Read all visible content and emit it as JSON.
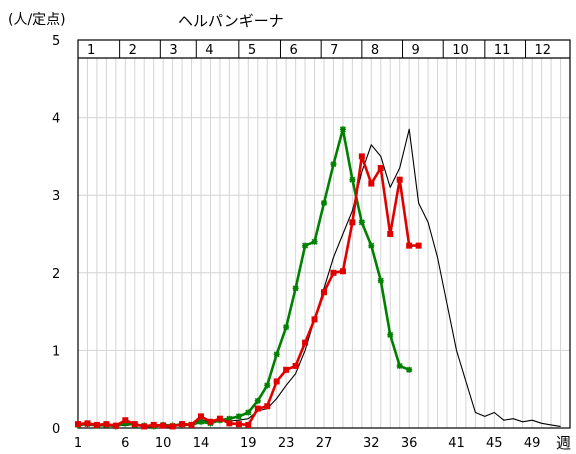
{
  "chart_data": {
    "type": "line",
    "title": "ヘルパンギーナ",
    "ylabel": "(人/定点)",
    "xlabel": "週",
    "ylim": [
      0,
      5
    ],
    "xlim": [
      1,
      53
    ],
    "grid": true,
    "yticks": [
      "0",
      "1",
      "2",
      "3",
      "4",
      "5"
    ],
    "xticks": [
      {
        "x": 1,
        "label": "1"
      },
      {
        "x": 6,
        "label": "6"
      },
      {
        "x": 10,
        "label": "10"
      },
      {
        "x": 14,
        "label": "14"
      },
      {
        "x": 19,
        "label": "19"
      },
      {
        "x": 23,
        "label": "23"
      },
      {
        "x": 27,
        "label": "27"
      },
      {
        "x": 32,
        "label": "32"
      },
      {
        "x": 36,
        "label": "36"
      },
      {
        "x": 41,
        "label": "41"
      },
      {
        "x": 45,
        "label": "45"
      },
      {
        "x": 49,
        "label": "49"
      }
    ],
    "months": [
      {
        "label": "1",
        "start": 1,
        "end": 5.4
      },
      {
        "label": "2",
        "start": 5.4,
        "end": 9.7
      },
      {
        "label": "3",
        "start": 9.7,
        "end": 13.5
      },
      {
        "label": "4",
        "start": 13.5,
        "end": 18
      },
      {
        "label": "5",
        "start": 18,
        "end": 22.4
      },
      {
        "label": "6",
        "start": 22.4,
        "end": 26.7
      },
      {
        "label": "7",
        "start": 26.7,
        "end": 31
      },
      {
        "label": "8",
        "start": 31,
        "end": 35.3
      },
      {
        "label": "9",
        "start": 35.3,
        "end": 39.6
      },
      {
        "label": "10",
        "start": 39.6,
        "end": 44
      },
      {
        "label": "11",
        "start": 44,
        "end": 48.3
      },
      {
        "label": "12",
        "start": 48.3,
        "end": 53
      }
    ],
    "series": [
      {
        "color": "#000000",
        "marker": "none",
        "x": [
          1,
          2,
          3,
          4,
          5,
          6,
          7,
          8,
          9,
          10,
          11,
          12,
          13,
          14,
          15,
          16,
          17,
          18,
          19,
          20,
          21,
          22,
          23,
          24,
          25,
          26,
          27,
          28,
          29,
          30,
          31,
          32,
          33,
          34,
          35,
          36,
          37,
          38,
          39,
          40,
          41,
          42,
          43,
          44,
          45,
          46,
          47,
          48,
          49,
          50,
          51,
          52
        ],
        "values": [
          0.05,
          0.04,
          0.05,
          0.02,
          0.04,
          0.03,
          0.05,
          0.03,
          0.02,
          0.03,
          0.04,
          0.02,
          0.05,
          0.1,
          0.08,
          0.12,
          0.09,
          0.1,
          0.12,
          0.22,
          0.25,
          0.38,
          0.55,
          0.7,
          1.0,
          1.4,
          1.8,
          2.2,
          2.5,
          2.8,
          3.3,
          3.65,
          3.5,
          3.1,
          3.35,
          3.85,
          2.9,
          2.65,
          2.2,
          1.6,
          1.0,
          0.6,
          0.2,
          0.15,
          0.2,
          0.1,
          0.12,
          0.08,
          0.1,
          0.06,
          0.04,
          0.02
        ]
      },
      {
        "color": "#008000",
        "marker": "star",
        "x": [
          1,
          2,
          3,
          4,
          5,
          6,
          7,
          8,
          9,
          10,
          11,
          12,
          13,
          14,
          15,
          16,
          17,
          18,
          19,
          20,
          21,
          22,
          23,
          24,
          25,
          26,
          27,
          28,
          29,
          30,
          31,
          32,
          33,
          34,
          35,
          36
        ],
        "values": [
          0.04,
          0.05,
          0.03,
          0.04,
          0.02,
          0.06,
          0.04,
          0.03,
          0.02,
          0.04,
          0.03,
          0.05,
          0.04,
          0.08,
          0.06,
          0.1,
          0.12,
          0.15,
          0.2,
          0.35,
          0.55,
          0.95,
          1.3,
          1.8,
          2.35,
          2.4,
          2.9,
          3.4,
          3.85,
          3.2,
          2.65,
          2.35,
          1.9,
          1.2,
          0.8,
          0.75
        ]
      },
      {
        "color": "#e00000",
        "marker": "square",
        "x": [
          1,
          2,
          3,
          4,
          5,
          6,
          7,
          8,
          9,
          10,
          11,
          12,
          13,
          14,
          15,
          16,
          17,
          18,
          19,
          20,
          21,
          22,
          23,
          24,
          25,
          26,
          27,
          28,
          29,
          30,
          31,
          32,
          33,
          34,
          35,
          36,
          37
        ],
        "values": [
          0.05,
          0.06,
          0.04,
          0.05,
          0.03,
          0.1,
          0.05,
          0.02,
          0.04,
          0.03,
          0.02,
          0.05,
          0.04,
          0.15,
          0.08,
          0.12,
          0.06,
          0.05,
          0.04,
          0.25,
          0.28,
          0.6,
          0.75,
          0.8,
          1.1,
          1.4,
          1.75,
          2.0,
          2.02,
          2.65,
          3.5,
          3.15,
          3.35,
          2.5,
          3.2,
          2.35,
          2.35
        ]
      }
    ]
  }
}
